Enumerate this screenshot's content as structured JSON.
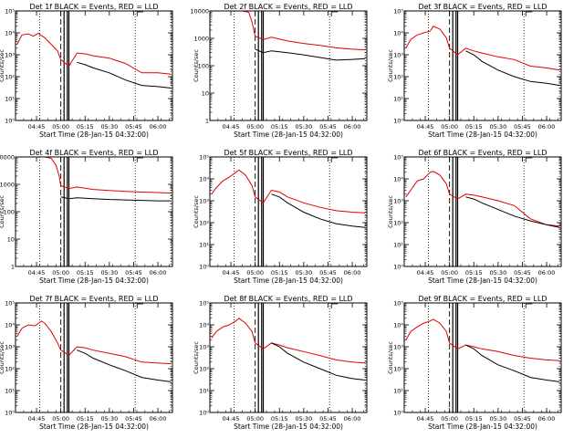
{
  "figure": {
    "time_ticks": [
      "04:45",
      "05:00",
      "05:15",
      "05:30",
      "05:45",
      "06:00"
    ],
    "colors": {
      "events": "#000000",
      "lld": "#e00000",
      "frame": "#000000"
    }
  },
  "chart_data": [
    {
      "type": "line",
      "title": "Det 1f BLACK = Events, RED = LLD",
      "ylabel": "Counts/sec",
      "xlabel": "Start Time (28-Jan-15 04:32:00)",
      "yscale": "log",
      "ylim": [
        1,
        100000
      ],
      "ytick_labels": [
        "10⁰",
        "10¹",
        "10²",
        "10³",
        "10⁴",
        "10⁵"
      ],
      "time_range": [
        "04:32",
        "06:09"
      ],
      "vlines_dotted": [
        "04:47",
        "05:46",
        "06:08"
      ],
      "vlines_dashed": [
        "05:00"
      ],
      "vlines_solid": [
        "05:02",
        "05:04",
        "05:05"
      ],
      "series": [
        {
          "name": "LLD",
          "x": [
            "04:33",
            "04:36",
            "04:40",
            "04:43",
            "04:46",
            "04:50",
            "04:54",
            "04:58",
            "05:00",
            "05:05",
            "05:10",
            "05:15",
            "05:20",
            "05:30",
            "05:40",
            "05:50",
            "06:00",
            "06:08"
          ],
          "y": [
            3000,
            8000,
            9000,
            7000,
            9500,
            6000,
            3000,
            1500,
            600,
            300,
            1200,
            1100,
            900,
            700,
            400,
            150,
            150,
            130
          ]
        },
        {
          "name": "Events",
          "x": [
            "05:10",
            "05:15",
            "05:20",
            "05:30",
            "05:40",
            "05:50",
            "06:00",
            "06:08"
          ],
          "y": [
            450,
            350,
            250,
            150,
            70,
            40,
            35,
            30
          ]
        }
      ]
    },
    {
      "type": "line",
      "title": "Det 2f BLACK = Events, RED = LLD",
      "ylabel": "Counts/sec",
      "xlabel": "Start Time (28-Jan-15 04:32:00)",
      "yscale": "log",
      "ylim": [
        1,
        10000
      ],
      "ytick_labels": [
        "1",
        "10",
        "100",
        "1000",
        "10000"
      ],
      "time_range": [
        "04:32",
        "06:09"
      ],
      "vlines_dotted": [
        "04:47",
        "05:46",
        "06:08"
      ],
      "vlines_dashed": [
        "05:00"
      ],
      "vlines_solid": [
        "05:02",
        "05:04",
        "05:05"
      ],
      "series": [
        {
          "name": "LLD",
          "x": [
            "04:33",
            "04:36",
            "04:40",
            "04:46",
            "04:52",
            "04:56",
            "04:58",
            "05:00",
            "05:05",
            "05:10",
            "05:20",
            "05:30",
            "05:40",
            "05:50",
            "06:00",
            "06:08"
          ],
          "y": [
            10000,
            10000,
            10000,
            10000,
            10000,
            9000,
            4000,
            1200,
            900,
            1100,
            800,
            650,
            550,
            450,
            400,
            380
          ]
        },
        {
          "name": "Events",
          "x": [
            "05:00",
            "05:05",
            "05:10",
            "05:20",
            "05:30",
            "05:40",
            "05:50",
            "06:00",
            "06:08"
          ],
          "y": [
            400,
            300,
            350,
            300,
            250,
            200,
            160,
            170,
            180
          ]
        }
      ]
    },
    {
      "type": "line",
      "title": "Det 3f BLACK = Events, RED = LLD",
      "ylabel": "Counts/sec",
      "xlabel": "Start Time (28-Jan-15 04:32:00)",
      "yscale": "log",
      "ylim": [
        1,
        100000
      ],
      "ytick_labels": [
        "10⁰",
        "10¹",
        "10²",
        "10³",
        "10⁴",
        "10⁵"
      ],
      "time_range": [
        "04:32",
        "06:09"
      ],
      "vlines_dotted": [
        "04:47",
        "05:46",
        "06:08"
      ],
      "vlines_dashed": [
        "05:00"
      ],
      "vlines_solid": [
        "05:02",
        "05:04",
        "05:05"
      ],
      "series": [
        {
          "name": "LLD",
          "x": [
            "04:33",
            "04:36",
            "04:40",
            "04:44",
            "04:48",
            "04:50",
            "04:54",
            "04:58",
            "05:00",
            "05:05",
            "05:10",
            "05:15",
            "05:20",
            "05:30",
            "05:40",
            "05:50",
            "06:00",
            "06:08"
          ],
          "y": [
            2000,
            5000,
            8000,
            10000,
            12000,
            20000,
            15000,
            6000,
            2000,
            1000,
            2000,
            1500,
            1200,
            800,
            600,
            300,
            250,
            200
          ]
        },
        {
          "name": "Events",
          "x": [
            "05:10",
            "05:15",
            "05:20",
            "05:30",
            "05:40",
            "05:50",
            "06:00",
            "06:08"
          ],
          "y": [
            1500,
            1000,
            500,
            200,
            100,
            60,
            50,
            40
          ]
        }
      ]
    },
    {
      "type": "line",
      "title": "Det 4f BLACK = Events, RED = LLD",
      "ylabel": "Counts/sec",
      "xlabel": "Start Time (28-Jan-15 04:32:00)",
      "yscale": "log",
      "ylim": [
        1,
        10000
      ],
      "ytick_labels": [
        "1",
        "10",
        "100",
        "1000",
        "10000"
      ],
      "time_range": [
        "04:32",
        "06:09"
      ],
      "vlines_dotted": [
        "04:47",
        "05:46",
        "06:08"
      ],
      "vlines_dashed": [
        "05:00"
      ],
      "vlines_solid": [
        "05:02",
        "05:04",
        "05:05"
      ],
      "series": [
        {
          "name": "LLD",
          "x": [
            "04:33",
            "04:38",
            "04:44",
            "04:50",
            "04:54",
            "04:57",
            "04:59",
            "05:00",
            "05:05",
            "05:10",
            "05:20",
            "05:30",
            "05:40",
            "05:50",
            "06:00",
            "06:08"
          ],
          "y": [
            10000,
            10000,
            10000,
            10000,
            9000,
            5000,
            2000,
            900,
            700,
            800,
            650,
            600,
            550,
            520,
            500,
            480
          ]
        },
        {
          "name": "Events",
          "x": [
            "05:00",
            "05:05",
            "05:10",
            "05:20",
            "05:30",
            "05:40",
            "05:50",
            "06:00",
            "06:08"
          ],
          "y": [
            350,
            300,
            320,
            300,
            280,
            270,
            260,
            250,
            250
          ]
        }
      ]
    },
    {
      "type": "line",
      "title": "Det 5f BLACK = Events, RED = LLD",
      "ylabel": "Counts/sec",
      "xlabel": "Start Time (28-Jan-15 04:32:00)",
      "yscale": "log",
      "ylim": [
        1,
        100000
      ],
      "ytick_labels": [
        "10⁰",
        "10¹",
        "10²",
        "10³",
        "10⁴",
        "10⁵"
      ],
      "time_range": [
        "04:32",
        "06:09"
      ],
      "vlines_dotted": [
        "04:47",
        "05:46",
        "06:08"
      ],
      "vlines_dashed": [
        "05:00"
      ],
      "vlines_solid": [
        "05:02",
        "05:04",
        "05:05"
      ],
      "series": [
        {
          "name": "LLD",
          "x": [
            "04:33",
            "04:36",
            "04:40",
            "04:44",
            "04:48",
            "04:50",
            "04:54",
            "04:58",
            "05:00",
            "05:05",
            "05:10",
            "05:15",
            "05:20",
            "05:30",
            "05:40",
            "05:50",
            "06:00",
            "06:08"
          ],
          "y": [
            2000,
            4000,
            8000,
            12000,
            20000,
            25000,
            15000,
            5000,
            1500,
            800,
            3000,
            2500,
            1500,
            800,
            500,
            350,
            300,
            280
          ]
        },
        {
          "name": "Events",
          "x": [
            "05:10",
            "05:15",
            "05:20",
            "05:30",
            "05:40",
            "05:50",
            "06:00",
            "06:08"
          ],
          "y": [
            2000,
            1500,
            800,
            300,
            150,
            90,
            70,
            60
          ]
        }
      ]
    },
    {
      "type": "line",
      "title": "Det 6f BLACK = Events, RED = LLD",
      "ylabel": "Counts/sec",
      "xlabel": "Start Time (28-Jan-15 04:32:00)",
      "yscale": "log",
      "ylim": [
        1,
        100000
      ],
      "ytick_labels": [
        "10⁰",
        "10¹",
        "10²",
        "10³",
        "10⁴",
        "10⁵"
      ],
      "time_range": [
        "04:32",
        "06:09"
      ],
      "vlines_dotted": [
        "04:47",
        "05:46",
        "06:08"
      ],
      "vlines_dashed": [
        "05:00"
      ],
      "vlines_solid": [
        "05:02",
        "05:04",
        "05:05"
      ],
      "series": [
        {
          "name": "LLD",
          "x": [
            "04:33",
            "04:36",
            "04:40",
            "04:44",
            "04:48",
            "04:50",
            "04:54",
            "04:58",
            "05:00",
            "05:05",
            "05:10",
            "05:15",
            "05:20",
            "05:30",
            "05:40",
            "05:50",
            "06:00",
            "06:08"
          ],
          "y": [
            1500,
            3000,
            8000,
            10000,
            20000,
            22000,
            15000,
            6000,
            2000,
            1200,
            2000,
            1800,
            1500,
            1000,
            600,
            150,
            80,
            70
          ]
        },
        {
          "name": "Events",
          "x": [
            "05:10",
            "05:15",
            "05:20",
            "05:30",
            "05:40",
            "05:50",
            "06:00",
            "06:08"
          ],
          "y": [
            1500,
            1200,
            800,
            400,
            200,
            120,
            80,
            60
          ]
        }
      ]
    },
    {
      "type": "line",
      "title": "Det 7f BLACK = Events, RED = LLD",
      "ylabel": "Counts/sec",
      "xlabel": "Start Time (28-Jan-15 04:32:00)",
      "yscale": "log",
      "ylim": [
        1,
        100000
      ],
      "ytick_labels": [
        "10⁰",
        "10¹",
        "10²",
        "10³",
        "10⁴",
        "10⁵"
      ],
      "time_range": [
        "04:32",
        "06:09"
      ],
      "vlines_dotted": [
        "04:47",
        "05:46",
        "06:08"
      ],
      "vlines_dashed": [
        "05:00"
      ],
      "vlines_solid": [
        "05:02",
        "05:04",
        "05:05"
      ],
      "series": [
        {
          "name": "LLD",
          "x": [
            "04:33",
            "04:36",
            "04:40",
            "04:44",
            "04:48",
            "04:50",
            "04:54",
            "04:58",
            "05:00",
            "05:05",
            "05:10",
            "05:15",
            "05:20",
            "05:30",
            "05:40",
            "05:50",
            "06:00",
            "06:08"
          ],
          "y": [
            3000,
            7000,
            10000,
            9000,
            15000,
            12000,
            5000,
            1500,
            700,
            400,
            1000,
            900,
            700,
            500,
            350,
            200,
            180,
            170
          ]
        },
        {
          "name": "Events",
          "x": [
            "05:10",
            "05:15",
            "05:20",
            "05:30",
            "05:40",
            "05:50",
            "06:00",
            "06:08"
          ],
          "y": [
            700,
            500,
            300,
            150,
            80,
            40,
            30,
            25
          ]
        }
      ]
    },
    {
      "type": "line",
      "title": "Det 8f BLACK = Events, RED = LLD",
      "ylabel": "Counts/sec",
      "xlabel": "Start Time (28-Jan-15 04:32:00)",
      "yscale": "log",
      "ylim": [
        1,
        100000
      ],
      "ytick_labels": [
        "10⁰",
        "10¹",
        "10²",
        "10³",
        "10⁴",
        "10⁵"
      ],
      "time_range": [
        "04:32",
        "06:09"
      ],
      "vlines_dotted": [
        "04:47",
        "05:46",
        "06:08"
      ],
      "vlines_dashed": [
        "05:00"
      ],
      "vlines_solid": [
        "05:02",
        "05:04",
        "05:05"
      ],
      "series": [
        {
          "name": "LLD",
          "x": [
            "04:33",
            "04:36",
            "04:40",
            "04:44",
            "04:48",
            "04:50",
            "04:54",
            "04:58",
            "05:00",
            "05:05",
            "05:10",
            "05:15",
            "05:20",
            "05:30",
            "05:40",
            "05:50",
            "06:00",
            "06:08"
          ],
          "y": [
            2500,
            5000,
            8000,
            10000,
            15000,
            20000,
            12000,
            5000,
            1500,
            800,
            1500,
            1200,
            900,
            600,
            400,
            250,
            200,
            180
          ]
        },
        {
          "name": "Events",
          "x": [
            "05:10",
            "05:15",
            "05:20",
            "05:30",
            "05:40",
            "05:50",
            "06:00",
            "06:08"
          ],
          "y": [
            1500,
            1000,
            500,
            200,
            100,
            50,
            35,
            30
          ]
        }
      ]
    },
    {
      "type": "line",
      "title": "Det 9f BLACK = Events, RED = LLD",
      "ylabel": "Counts/sec",
      "xlabel": "Start Time (28-Jan-15 04:32:00)",
      "yscale": "log",
      "ylim": [
        1,
        100000
      ],
      "ytick_labels": [
        "10⁰",
        "10¹",
        "10²",
        "10³",
        "10⁴",
        "10⁵"
      ],
      "time_range": [
        "04:32",
        "06:09"
      ],
      "vlines_dotted": [
        "04:47",
        "05:46",
        "06:08"
      ],
      "vlines_dashed": [
        "05:00"
      ],
      "vlines_solid": [
        "05:02",
        "05:04",
        "05:05"
      ],
      "series": [
        {
          "name": "LLD",
          "x": [
            "04:33",
            "04:36",
            "04:40",
            "04:44",
            "04:48",
            "04:50",
            "04:54",
            "04:58",
            "05:00",
            "05:05",
            "05:10",
            "05:15",
            "05:20",
            "05:30",
            "05:40",
            "05:50",
            "06:00",
            "06:08"
          ],
          "y": [
            2000,
            5000,
            8000,
            12000,
            15000,
            18000,
            12000,
            5000,
            1500,
            800,
            1200,
            1000,
            800,
            600,
            400,
            300,
            250,
            230
          ]
        },
        {
          "name": "Events",
          "x": [
            "05:10",
            "05:15",
            "05:20",
            "05:30",
            "05:40",
            "05:50",
            "06:00",
            "06:08"
          ],
          "y": [
            1200,
            800,
            400,
            150,
            80,
            40,
            30,
            25
          ]
        }
      ]
    }
  ]
}
